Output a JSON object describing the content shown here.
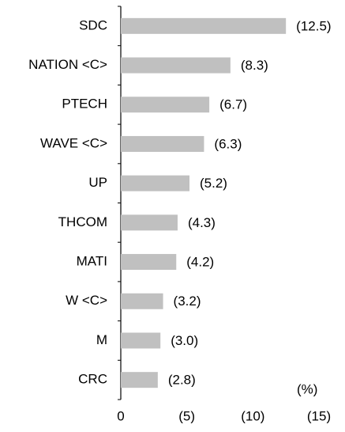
{
  "chart_data": {
    "type": "bar",
    "orientation": "horizontal",
    "categories": [
      "SDC",
      "NATION <C>",
      "PTECH",
      "WAVE <C>",
      "UP",
      "THCOM",
      "MATI",
      "W <C>",
      "M",
      "CRC"
    ],
    "values": [
      -12.5,
      -8.3,
      -6.7,
      -6.3,
      -5.2,
      -4.3,
      -4.2,
      -3.2,
      -3.0,
      -2.8
    ],
    "value_labels": [
      "(12.5)",
      "(8.3)",
      "(6.7)",
      "(6.3)",
      "(5.2)",
      "(4.3)",
      "(4.2)",
      "(3.2)",
      "(3.0)",
      "(2.8)"
    ],
    "color": "#c0c0c0",
    "xlim": [
      0,
      -15
    ],
    "xticks": [
      0,
      {
        "value": -5,
        "label": "(5)"
      },
      {
        "value": -10,
        "label": "(10)"
      },
      {
        "value": -15,
        "label": "(15)"
      }
    ],
    "unit_label": "(%)"
  }
}
